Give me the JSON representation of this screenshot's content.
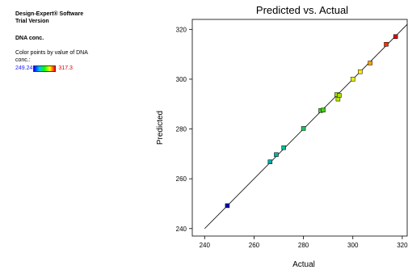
{
  "sidepanel": {
    "software_line1": "Design-Expert® Software",
    "software_line2": "Trial Version",
    "response_title": "DNA conc.",
    "color_label": "Color points by value of DNA conc.:",
    "legend_min": "249.24",
    "legend_max": "317.3",
    "gradient_colors": [
      "#0000ff",
      "#00c0ff",
      "#00ff00",
      "#ffff00",
      "#ff0000"
    ]
  },
  "chart_data": {
    "type": "scatter",
    "title": "Predicted vs. Actual",
    "xlabel": "Actual",
    "ylabel": "Predicted",
    "xlim": [
      235,
      322
    ],
    "ylim": [
      237,
      324
    ],
    "xticks": [
      240,
      260,
      280,
      300,
      320
    ],
    "yticks": [
      240,
      260,
      280,
      300,
      320
    ],
    "grid": false,
    "reference_line": [
      [
        240,
        240
      ],
      [
        322,
        322
      ]
    ],
    "points": [
      {
        "x": 249.2,
        "y": 249.2,
        "color": "#0000b4"
      },
      {
        "x": 266.5,
        "y": 266.8,
        "color": "#00a8a8"
      },
      {
        "x": 269.0,
        "y": 269.7,
        "color": "#00b4a0"
      },
      {
        "x": 272.0,
        "y": 272.5,
        "color": "#00c090"
      },
      {
        "x": 280.0,
        "y": 280.2,
        "color": "#10c850"
      },
      {
        "x": 287.0,
        "y": 287.4,
        "color": "#40d020"
      },
      {
        "x": 288.0,
        "y": 287.6,
        "color": "#48d018"
      },
      {
        "x": 293.5,
        "y": 293.8,
        "color": "#a0e000"
      },
      {
        "x": 294.0,
        "y": 292.0,
        "color": "#b8e800"
      },
      {
        "x": 294.5,
        "y": 293.5,
        "color": "#a8e000"
      },
      {
        "x": 300.0,
        "y": 300.0,
        "color": "#e0f000"
      },
      {
        "x": 303.0,
        "y": 303.0,
        "color": "#ffe800"
      },
      {
        "x": 307.0,
        "y": 306.5,
        "color": "#ffa000"
      },
      {
        "x": 313.5,
        "y": 314.0,
        "color": "#ff3000"
      },
      {
        "x": 317.3,
        "y": 317.1,
        "color": "#e00000"
      }
    ]
  }
}
